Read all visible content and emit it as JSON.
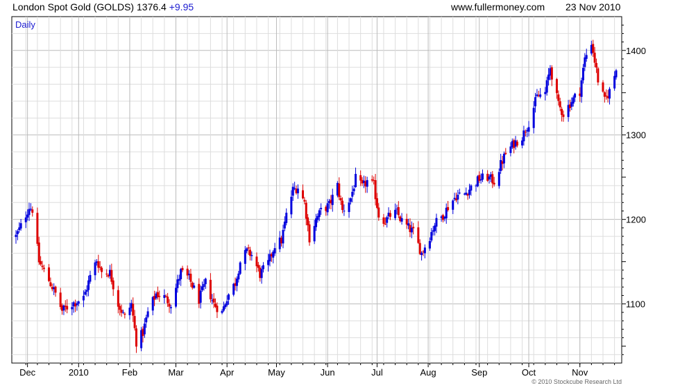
{
  "header": {
    "title": "London Spot Gold (GOLDS)",
    "last": "1376.4",
    "change": "+9.95",
    "site": "www.fullermoney.com",
    "date": "23 Nov 2010"
  },
  "chart_data": {
    "type": "candlestick",
    "period_label": "Daily",
    "copyright": "© 2010 Stockcube Research Ltd",
    "y_axis": {
      "position": "right",
      "min": 1030,
      "max": 1440,
      "ticks": [
        1100,
        1200,
        1300,
        1400
      ]
    },
    "x_axis": {
      "labels": [
        "Dec",
        "2010",
        "Feb",
        "Mar",
        "Apr",
        "May",
        "Jun",
        "Jul",
        "Aug",
        "Sep",
        "Oct",
        "Nov"
      ],
      "label_dates": [
        "2009-12-01",
        "2010-01-01",
        "2010-02-01",
        "2010-03-01",
        "2010-04-01",
        "2010-05-01",
        "2010-06-01",
        "2010-07-01",
        "2010-08-01",
        "2010-09-01",
        "2010-10-01",
        "2010-11-01"
      ],
      "start": "2009-11-24",
      "end": "2010-11-23"
    },
    "grid": true,
    "colors": {
      "up": "#0000dd",
      "down": "#dd0000",
      "grid": "#dddddd",
      "major_grid": "#bbbbbb"
    },
    "close_path": [
      [
        "2009-11-24",
        1180
      ],
      [
        "2009-11-27",
        1192
      ],
      [
        "2009-12-02",
        1215
      ],
      [
        "2009-12-04",
        1212
      ],
      [
        "2009-12-08",
        1150
      ],
      [
        "2009-12-14",
        1128
      ],
      [
        "2009-12-18",
        1112
      ],
      [
        "2009-12-22",
        1092
      ],
      [
        "2009-12-28",
        1100
      ],
      [
        "2010-01-04",
        1107
      ],
      [
        "2010-01-08",
        1132
      ],
      [
        "2010-01-12",
        1152
      ],
      [
        "2010-01-15",
        1138
      ],
      [
        "2010-01-20",
        1137
      ],
      [
        "2010-01-25",
        1100
      ],
      [
        "2010-01-29",
        1084
      ],
      [
        "2010-02-02",
        1100
      ],
      [
        "2010-02-05",
        1055
      ],
      [
        "2010-02-09",
        1066
      ],
      [
        "2010-02-12",
        1090
      ],
      [
        "2010-02-17",
        1112
      ],
      [
        "2010-02-22",
        1108
      ],
      [
        "2010-02-26",
        1100
      ],
      [
        "2010-03-04",
        1138
      ],
      [
        "2010-03-09",
        1130
      ],
      [
        "2010-03-15",
        1105
      ],
      [
        "2010-03-19",
        1125
      ],
      [
        "2010-03-24",
        1100
      ],
      [
        "2010-03-29",
        1090
      ],
      [
        "2010-04-01",
        1108
      ],
      [
        "2010-04-06",
        1125
      ],
      [
        "2010-04-09",
        1150
      ],
      [
        "2010-04-13",
        1162
      ],
      [
        "2010-04-16",
        1158
      ],
      [
        "2010-04-21",
        1135
      ],
      [
        "2010-04-26",
        1148
      ],
      [
        "2010-04-30",
        1170
      ],
      [
        "2010-05-04",
        1175
      ],
      [
        "2010-05-07",
        1205
      ],
      [
        "2010-05-11",
        1235
      ],
      [
        "2010-05-14",
        1238
      ],
      [
        "2010-05-18",
        1220
      ],
      [
        "2010-05-21",
        1178
      ],
      [
        "2010-05-25",
        1200
      ],
      [
        "2010-05-28",
        1210
      ],
      [
        "2010-06-02",
        1217
      ],
      [
        "2010-06-07",
        1240
      ],
      [
        "2010-06-10",
        1210
      ],
      [
        "2010-06-15",
        1225
      ],
      [
        "2010-06-18",
        1248
      ],
      [
        "2010-06-22",
        1238
      ],
      [
        "2010-06-25",
        1245
      ],
      [
        "2010-06-29",
        1240
      ],
      [
        "2010-07-02",
        1205
      ],
      [
        "2010-07-06",
        1198
      ],
      [
        "2010-07-09",
        1205
      ],
      [
        "2010-07-13",
        1208
      ],
      [
        "2010-07-16",
        1198
      ],
      [
        "2010-07-20",
        1190
      ],
      [
        "2010-07-23",
        1185
      ],
      [
        "2010-07-28",
        1160
      ],
      [
        "2010-08-02",
        1180
      ],
      [
        "2010-08-05",
        1195
      ],
      [
        "2010-08-10",
        1205
      ],
      [
        "2010-08-13",
        1215
      ],
      [
        "2010-08-18",
        1228
      ],
      [
        "2010-08-23",
        1230
      ],
      [
        "2010-08-27",
        1238
      ],
      [
        "2010-09-01",
        1248
      ],
      [
        "2010-09-06",
        1250
      ],
      [
        "2010-09-10",
        1245
      ],
      [
        "2010-09-14",
        1265
      ],
      [
        "2010-09-17",
        1278
      ],
      [
        "2010-09-22",
        1290
      ],
      [
        "2010-09-27",
        1298
      ],
      [
        "2010-10-01",
        1315
      ],
      [
        "2010-10-06",
        1345
      ],
      [
        "2010-10-11",
        1350
      ],
      [
        "2010-10-14",
        1380
      ],
      [
        "2010-10-19",
        1335
      ],
      [
        "2010-10-22",
        1325
      ],
      [
        "2010-10-27",
        1340
      ],
      [
        "2010-11-01",
        1352
      ],
      [
        "2010-11-04",
        1390
      ],
      [
        "2010-11-08",
        1410
      ],
      [
        "2010-11-12",
        1365
      ],
      [
        "2010-11-16",
        1340
      ],
      [
        "2010-11-19",
        1352
      ],
      [
        "2010-11-23",
        1376.4
      ]
    ]
  }
}
